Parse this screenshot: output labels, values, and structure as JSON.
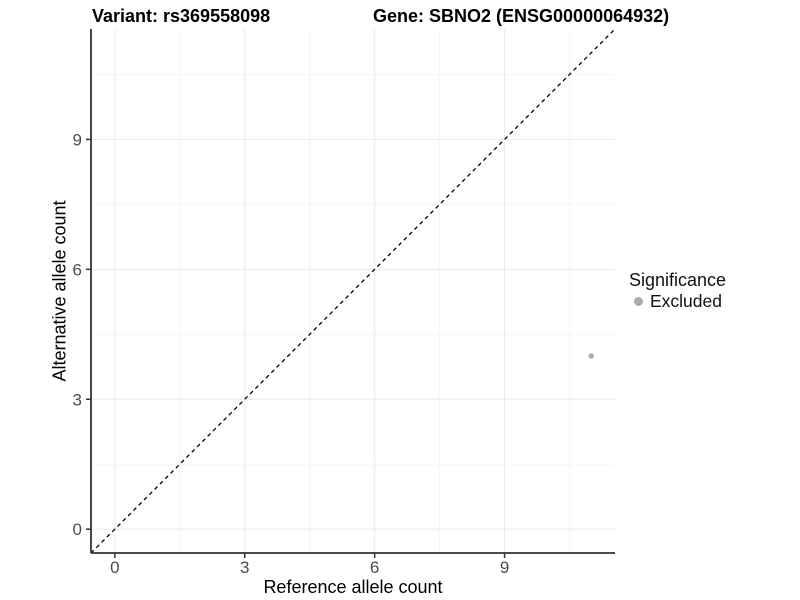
{
  "chart_data": {
    "type": "scatter",
    "title_left": "Variant: rs369558098",
    "title_right": "Gene: SBNO2 (ENSG00000064932)",
    "xlabel": "Reference allele count",
    "ylabel": "Alternative allele count",
    "xlim": [
      -0.55,
      11.55
    ],
    "ylim": [
      -0.55,
      11.55
    ],
    "xticks": [
      0,
      3,
      6,
      9
    ],
    "yticks": [
      0,
      3,
      6,
      9
    ],
    "minor_grid_step": 1.5,
    "grid": "major and minor gridlines, light gray on white panel",
    "legend_position": "right",
    "legend_title": "Significance",
    "identity_line": {
      "type": "abline",
      "slope": 1,
      "intercept": 0,
      "style": "dashed",
      "color": "#000000"
    },
    "series": [
      {
        "name": "Excluded",
        "color": "#ABABAB",
        "points": [
          {
            "x": 11,
            "y": 4
          }
        ]
      }
    ]
  },
  "colors": {
    "background": "#FFFFFF",
    "axis_line": "#333333",
    "tick_mark": "#333333",
    "tick_label": "#4D4D4D",
    "grid_major": "#EAEAEA",
    "grid_minor": "#F5F5F5",
    "identity_line": "#000000",
    "point": "#ABABAB"
  }
}
